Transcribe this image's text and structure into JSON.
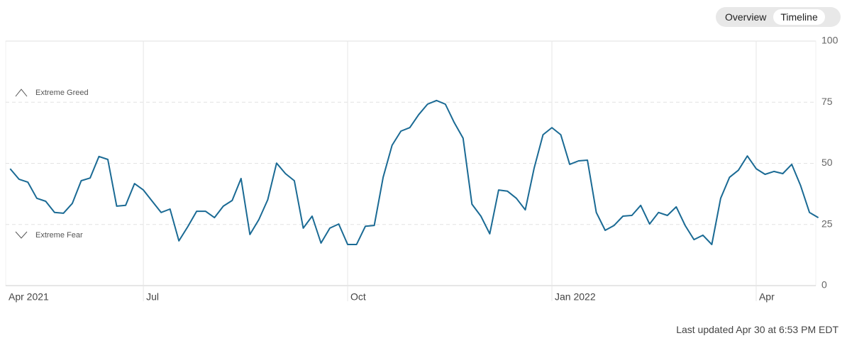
{
  "controls": {
    "buttons": [
      "Overview",
      "Timeline"
    ]
  },
  "footer": "Last updated Apr 30 at 6:53 PM EDT",
  "chart_data": {
    "type": "line",
    "annotations": [
      "Extreme Greed",
      "Extreme Fear"
    ],
    "categories": [
      "Apr 2021",
      null,
      null,
      null,
      null,
      null,
      null,
      null,
      null,
      null,
      null,
      null,
      null,
      null,
      null,
      "Jul",
      null,
      null,
      null,
      null,
      null,
      null,
      null,
      null,
      null,
      null,
      null,
      null,
      null,
      null,
      null,
      null,
      null,
      null,
      null,
      null,
      null,
      null,
      "Oct",
      null,
      null,
      null,
      null,
      null,
      null,
      null,
      null,
      null,
      null,
      null,
      null,
      null,
      null,
      null,
      null,
      null,
      null,
      null,
      null,
      null,
      null,
      "Jan 2022",
      null,
      null,
      null,
      null,
      null,
      null,
      null,
      null,
      null,
      null,
      null,
      null,
      null,
      null,
      null,
      null,
      null,
      null,
      null,
      null,
      null,
      null,
      "Apr",
      null,
      null,
      null,
      null,
      null,
      null,
      null
    ],
    "values": [
      47.8,
      43.5,
      42.3,
      35.7,
      34.5,
      29.9,
      29.6,
      33.6,
      42.9,
      44,
      52.8,
      51.6,
      32.5,
      32.8,
      41.7,
      39.1,
      34.5,
      29.9,
      31.3,
      18.3,
      24.1,
      30.4,
      30.4,
      27.8,
      32.5,
      34.8,
      43.8,
      20.9,
      27,
      35.1,
      50.1,
      45.8,
      42.9,
      23.5,
      28.4,
      17.4,
      23.5,
      25.2,
      16.8,
      16.8,
      24.3,
      24.6,
      44.3,
      57.4,
      63.2,
      64.6,
      69.9,
      74.2,
      75.7,
      74.2,
      66.7,
      60.3,
      33.3,
      28.4,
      21.2,
      39.1,
      38.6,
      35.7,
      31,
      48.1,
      61.7,
      64.6,
      61.7,
      49.6,
      51,
      51.3,
      29.9,
      22.6,
      24.6,
      28.4,
      28.7,
      32.8,
      25.2,
      29.9,
      28.7,
      32.2,
      24.6,
      18.8,
      20.6,
      16.8,
      35.7,
      44.3,
      47.2,
      53,
      47.8,
      45.5,
      46.7,
      45.8,
      49.6,
      40.9,
      29.9,
      27.8
    ],
    "color": "#1a6a94",
    "ylim": [
      0,
      100
    ],
    "yticks": [
      0,
      25,
      50,
      75,
      100
    ],
    "grid": true
  }
}
